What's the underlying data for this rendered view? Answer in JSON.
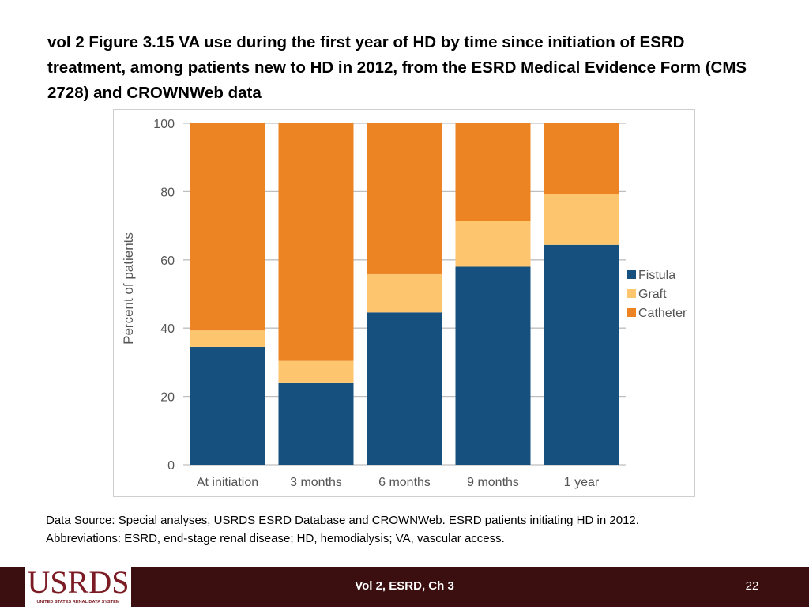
{
  "slide": {
    "title": "vol 2  Figure 3.15 VA use during the first year of HD by time since initiation of ESRD treatment, among patients new to HD in 2012, from the ESRD Medical Evidence Form (CMS 2728) and CROWNWeb data",
    "source_lines": [
      "Data Source: Special analyses, USRDS ESRD Database and CROWNWeb. ESRD patients initiating HD in 2012.",
      "Abbreviations: ESRD, end-stage renal disease; HD, hemodialysis; VA, vascular access."
    ],
    "footer": {
      "logo_text": "USRDS",
      "logo_subtext": "UNITED STATES RENAL DATA SYSTEM",
      "center_text": "Vol 2, ESRD, Ch 3",
      "page_number": "22"
    }
  },
  "chart_data": {
    "type": "bar",
    "stacked": true,
    "title": "",
    "xlabel": "",
    "ylabel": "Percent of patients",
    "ylim": [
      0,
      100
    ],
    "yticks": [
      0,
      20,
      40,
      60,
      80,
      100
    ],
    "grid": true,
    "legend_position": "right",
    "categories": [
      "At initiation",
      "3 months",
      "6 months",
      "9 months",
      "1 year"
    ],
    "series": [
      {
        "name": "Fistula",
        "color": "#16507f",
        "values": [
          34.5,
          24.1,
          44.6,
          58.0,
          64.4
        ]
      },
      {
        "name": "Graft",
        "color": "#fdc56e",
        "values": [
          4.8,
          6.3,
          11.2,
          13.5,
          14.8
        ]
      },
      {
        "name": "Catheter",
        "color": "#ec8424",
        "values": [
          60.7,
          69.6,
          44.2,
          28.5,
          20.8
        ]
      }
    ]
  }
}
